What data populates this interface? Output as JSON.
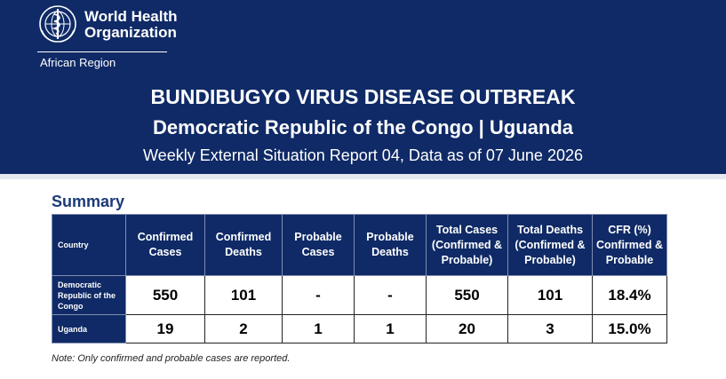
{
  "header": {
    "org_line1": "World Health",
    "org_line2": "Organization",
    "region": "African Region",
    "title": "BUNDIBUGYO VIRUS DISEASE OUTBREAK",
    "subtitle": "Democratic Republic of the Congo | Uguanda",
    "report_line": "Weekly External Situation Report 04, Data as of 07 June 2026"
  },
  "summary": {
    "heading": "Summary",
    "columns": {
      "country": "Country",
      "confirmed_cases": "Confirmed Cases",
      "confirmed_deaths": "Confirmed Deaths",
      "probable_cases": "Probable Cases",
      "probable_deaths": "Probable Deaths",
      "total_cases": "Total Cases (Confirmed & Probable)",
      "total_deaths": "Total Deaths (Confirmed & Probable)",
      "cfr": "CFR (%) Confirmed & Probable"
    },
    "rows": [
      {
        "country": "Democratic Republic of the Congo",
        "confirmed_cases": "550",
        "confirmed_deaths": "101",
        "probable_cases": "-",
        "probable_deaths": "-",
        "total_cases": "550",
        "total_deaths": "101",
        "cfr": "18.4%"
      },
      {
        "country": "Uganda",
        "confirmed_cases": "19",
        "confirmed_deaths": "2",
        "probable_cases": "1",
        "probable_deaths": "1",
        "total_cases": "20",
        "total_deaths": "3",
        "cfr": "15.0%"
      }
    ],
    "note": "Note: Only confirmed and probable cases are reported."
  },
  "colors": {
    "banner": "#0f2a66",
    "heading": "#1b3a78"
  },
  "icons": {
    "logo": "who-emblem-icon"
  }
}
